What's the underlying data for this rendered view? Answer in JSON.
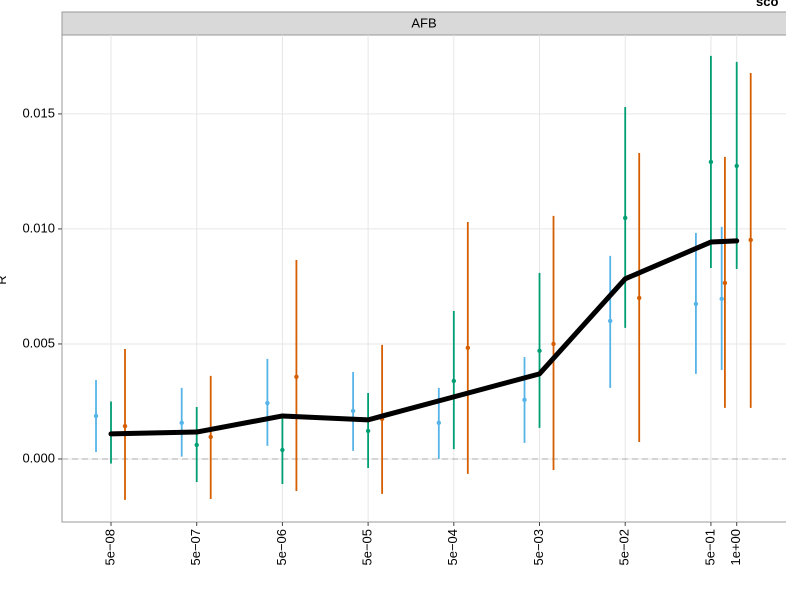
{
  "chart_data": {
    "type": "errorbar",
    "panel_title": "AFB",
    "y_label": "R",
    "legend_title": "sco",
    "x": [
      5e-08,
      5e-07,
      5e-06,
      5e-05,
      0.0005,
      0.005,
      0.05,
      0.5,
      1
    ],
    "xlim": [
      1.34e-08,
      3.76
    ],
    "xlog": true,
    "xticks": [
      {
        "value": 5e-08,
        "label": "5e−08"
      },
      {
        "value": 5e-07,
        "label": "5e−07"
      },
      {
        "value": 5e-06,
        "label": "5e−06"
      },
      {
        "value": 5e-05,
        "label": "5e−05"
      },
      {
        "value": 0.0005,
        "label": "5e−04"
      },
      {
        "value": 0.005,
        "label": "5e−03"
      },
      {
        "value": 0.05,
        "label": "5e−02"
      },
      {
        "value": 0.5,
        "label": "5e−01"
      },
      {
        "value": 1,
        "label": "1e+00"
      }
    ],
    "ylim": [
      -0.00274,
      0.01843
    ],
    "yticks": [
      {
        "value": 0,
        "label": "0.000"
      },
      {
        "value": 0.005,
        "label": "0.005"
      },
      {
        "value": 0.01,
        "label": "0.010"
      },
      {
        "value": 0.015,
        "label": "0.015"
      }
    ],
    "grid": true,
    "hline": 0,
    "series": [
      {
        "color": "#56B4E9",
        "values": [
          0.00187,
          0.00157,
          0.00243,
          0.00209,
          0.00157,
          0.00257,
          0.006,
          0.00674,
          0.00696
        ],
        "lower": [
          0.0003,
          0.0001,
          0.00057,
          0.00035,
          0,
          0.0007,
          0.00309,
          0.0037,
          0.00387
        ],
        "upper": [
          0.00343,
          0.00309,
          0.00435,
          0.00378,
          0.00309,
          0.00443,
          0.00883,
          0.00983,
          0.01009
        ]
      },
      {
        "color": "#009E73",
        "values": [
          0.0011,
          0.00061,
          0.00039,
          0.00122,
          0.00339,
          0.0047,
          0.01048,
          0.01291,
          0.01274
        ],
        "lower": [
          -0.0002,
          -0.001,
          -0.00109,
          -0.00039,
          0.00043,
          0.00135,
          0.0057,
          0.0083,
          0.00826
        ],
        "upper": [
          0.0025,
          0.00226,
          0.00191,
          0.00287,
          0.00643,
          0.00809,
          0.0153,
          0.01752,
          0.01726
        ]
      },
      {
        "color": "#D55E00",
        "values": [
          0.00143,
          0.00096,
          0.00357,
          0.00174,
          0.00483,
          0.005,
          0.007,
          0.00765,
          0.00952
        ],
        "lower": [
          -0.00178,
          -0.00174,
          -0.00139,
          -0.00152,
          -0.00065,
          -0.00048,
          0.00074,
          0.00222,
          0.00222
        ],
        "upper": [
          0.00478,
          0.00361,
          0.00865,
          0.00496,
          0.0103,
          0.01057,
          0.0133,
          0.01313,
          0.01678
        ]
      }
    ],
    "line": {
      "color": "#000000",
      "values": [
        0.00109,
        0.00117,
        0.00187,
        0.0017,
        0.0027,
        0.0037,
        0.00783,
        0.00943,
        0.00948
      ]
    }
  }
}
